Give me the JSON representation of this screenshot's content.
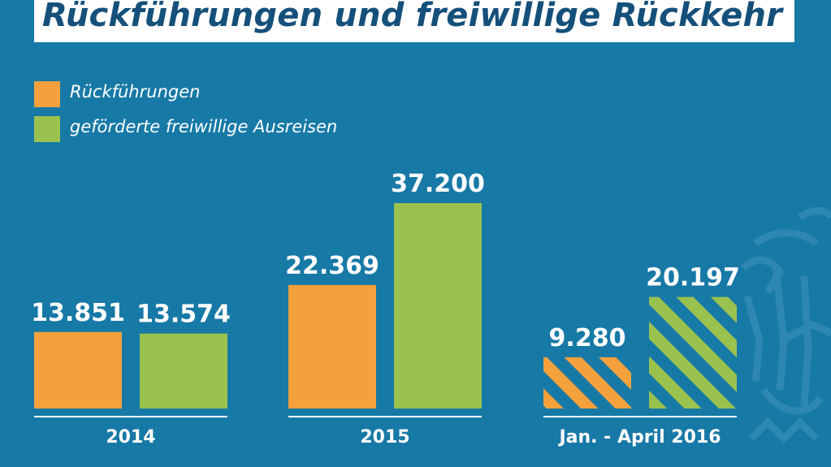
{
  "title": "Rückführungen und freiwillige Rückkehr",
  "colors": {
    "background": "#1779a6",
    "title_text": "#14507a",
    "orange": "#f4a13d",
    "green": "#9ac24f",
    "white": "#ffffff"
  },
  "legend": [
    {
      "label": "Rückführungen",
      "color": "#f4a13d"
    },
    {
      "label": "geförderte freiwillige Ausreisen",
      "color": "#9ac24f"
    }
  ],
  "chart_data": {
    "type": "bar",
    "title": "Rückführungen und freiwillige Rückkehr",
    "categories": [
      "2014",
      "2015",
      "Jan. - April 2016"
    ],
    "series": [
      {
        "name": "Rückführungen",
        "color": "#f4a13d",
        "values": [
          13851,
          22369,
          9280
        ],
        "labels": [
          "13.851",
          "22.369",
          "9.280"
        ]
      },
      {
        "name": "geförderte freiwillige Ausreisen",
        "color": "#9ac24f",
        "values": [
          13574,
          37200,
          20197
        ],
        "labels": [
          "13.574",
          "37.200",
          "20.197"
        ]
      }
    ],
    "hatched_categories": [
      "Jan. - April 2016"
    ],
    "ylim": [
      0,
      40000
    ],
    "grid": false,
    "legend_position": "top-left",
    "xlabel": "",
    "ylabel": ""
  }
}
